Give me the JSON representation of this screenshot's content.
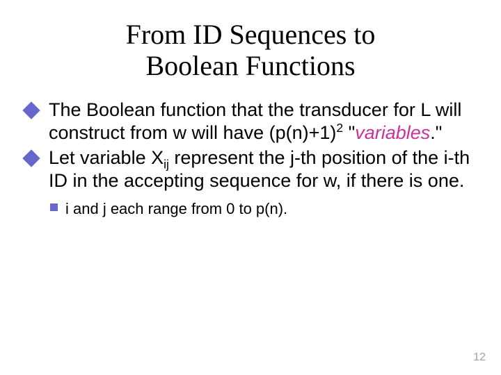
{
  "title": {
    "line1": "From ID Sequences to",
    "line2": "Boolean Functions",
    "fontsize": 40,
    "color": "#000000"
  },
  "bullets": [
    {
      "pre": "The Boolean function that the transducer for L will construct from w will have (p(n)+1)",
      "sup": "2",
      "mid": " \"",
      "italic": "variables",
      "post": ".\""
    },
    {
      "pre": "Let variable X",
      "sub": "ij",
      "post": " represent the j-th position of the i-th ID in the accepting sequence for w, if there is one."
    }
  ],
  "sub_bullet": {
    "text": "i and j each range from 0 to p(n)."
  },
  "style": {
    "body_fontsize": 27,
    "body_color": "#000000",
    "sub_fontsize": 22,
    "diamond_color": "#6666cc",
    "square_color": "#6666cc",
    "italic_color": "#cc3399",
    "page_number_color": "#a0a0a0",
    "page_number_fontsize": 16,
    "background": "#ffffff"
  },
  "page_number": "12"
}
